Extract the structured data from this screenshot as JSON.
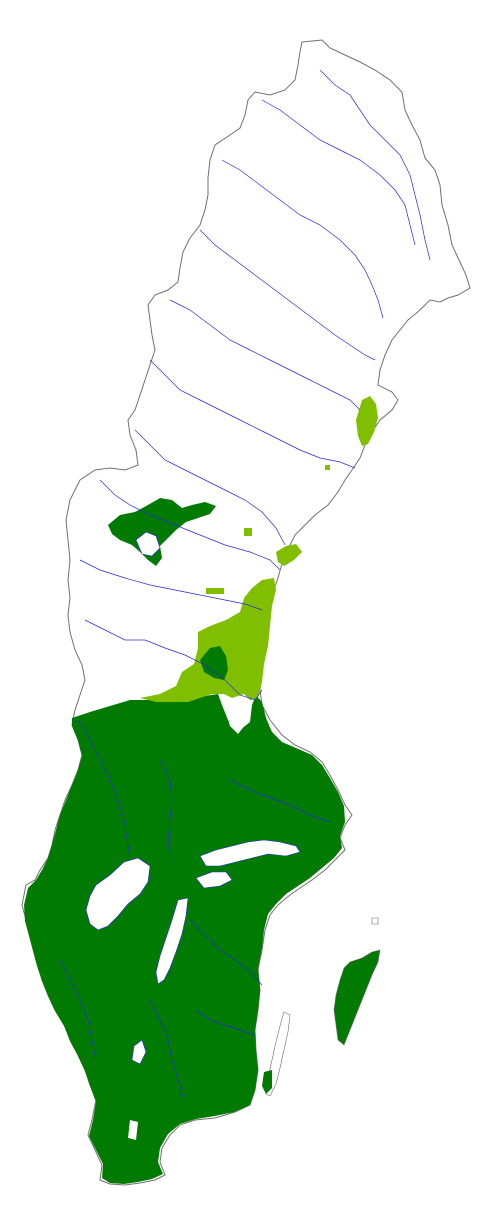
{
  "map": {
    "region": "Sweden",
    "colors": {
      "background": "#ffffff",
      "border": "#707070",
      "rivers": "#2a2ae0",
      "range_main": "#007a00",
      "range_secondary": "#80bf00",
      "lakes": "#ffffff"
    },
    "layers": [
      "country-outline",
      "rivers",
      "lakes",
      "range-main",
      "range-secondary",
      "islands"
    ]
  }
}
